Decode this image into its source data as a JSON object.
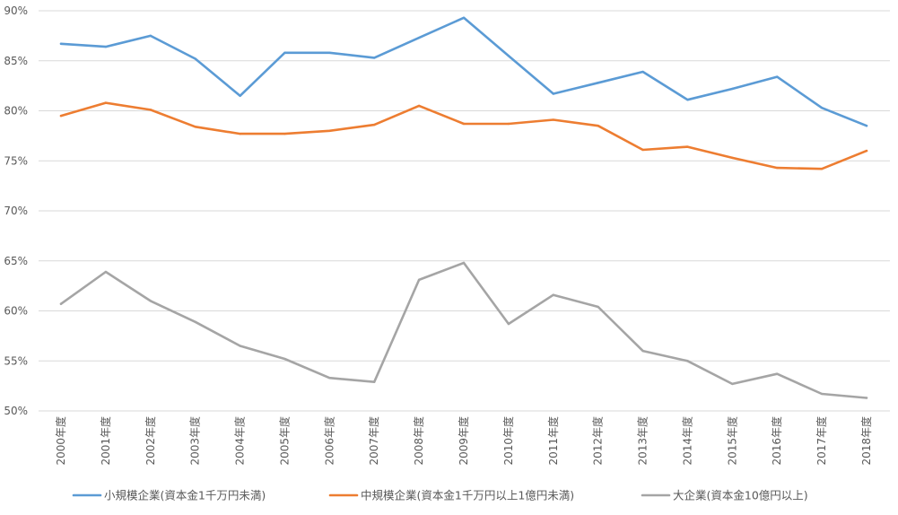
{
  "chart_data": {
    "type": "line",
    "title": "",
    "xlabel": "",
    "ylabel": "",
    "categories": [
      "2000年度",
      "2001年度",
      "2002年度",
      "2003年度",
      "2004年度",
      "2005年度",
      "2006年度",
      "2007年度",
      "2008年度",
      "2009年度",
      "2010年度",
      "2011年度",
      "2012年度",
      "2013年度",
      "2014年度",
      "2015年度",
      "2016年度",
      "2017年度",
      "2018年度"
    ],
    "y_ticks": [
      50,
      55,
      60,
      65,
      70,
      75,
      80,
      85,
      90
    ],
    "y_tick_labels": [
      "50%",
      "55%",
      "60%",
      "65%",
      "70%",
      "75%",
      "80%",
      "85%",
      "90%"
    ],
    "ylim": [
      50,
      90
    ],
    "grid": true,
    "legend_position": "bottom",
    "series": [
      {
        "name": "小規模企業(資本金1千万円未満)",
        "color": "#5b9bd5",
        "values": [
          86.7,
          86.4,
          87.5,
          85.2,
          81.5,
          85.8,
          85.8,
          85.3,
          87.3,
          89.3,
          85.5,
          81.7,
          82.8,
          83.9,
          81.1,
          82.2,
          83.4,
          80.3,
          78.5
        ]
      },
      {
        "name": "中規模企業(資本金1千万円以上1億円未満)",
        "color": "#ed7d31",
        "values": [
          79.5,
          80.8,
          80.1,
          78.4,
          77.7,
          77.7,
          78.0,
          78.6,
          80.5,
          78.7,
          78.7,
          79.1,
          78.5,
          76.1,
          76.4,
          75.3,
          74.3,
          74.2,
          76.0
        ]
      },
      {
        "name": "大企業(資本金10億円以上)",
        "color": "#a5a5a5",
        "values": [
          60.7,
          63.9,
          61.0,
          58.9,
          56.5,
          55.2,
          53.3,
          52.9,
          63.1,
          64.8,
          58.7,
          61.6,
          60.4,
          56.0,
          55.0,
          52.7,
          53.7,
          51.7,
          51.3
        ]
      }
    ]
  }
}
